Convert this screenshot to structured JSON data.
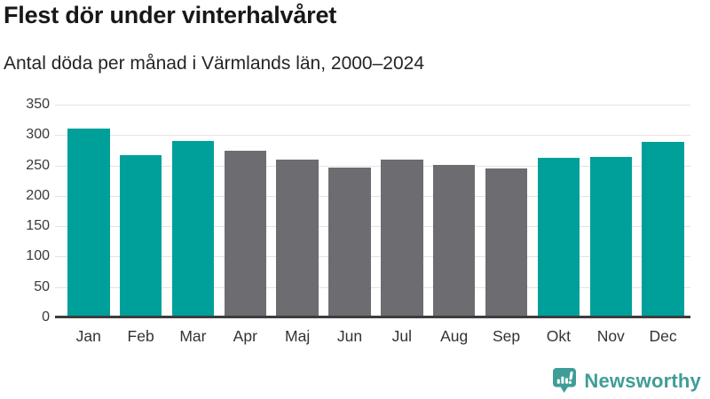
{
  "title": "Flest dör under vinterhalvåret",
  "subtitle": "Antal döda per månad i Värmlands län, 2000–2024",
  "chart_data": {
    "type": "bar",
    "title": "Flest dör under vinterhalvåret",
    "subtitle": "Antal döda per månad i Värmlands län, 2000–2024",
    "categories": [
      "Jan",
      "Feb",
      "Mar",
      "Apr",
      "Maj",
      "Jun",
      "Jul",
      "Aug",
      "Sep",
      "Okt",
      "Nov",
      "Dec"
    ],
    "values": [
      310,
      267,
      290,
      274,
      259,
      247,
      259,
      251,
      245,
      263,
      264,
      289
    ],
    "bar_groups": [
      "winter",
      "winter",
      "winter",
      "summer",
      "summer",
      "summer",
      "summer",
      "summer",
      "summer",
      "winter",
      "winter",
      "winter"
    ],
    "group_colors": {
      "winter": "#00a09a",
      "summer": "#6d6d71"
    },
    "xlabel": "",
    "ylabel": "",
    "ylim": [
      0,
      350
    ],
    "yticks": [
      0,
      50,
      100,
      150,
      200,
      250,
      300,
      350
    ],
    "grid": true,
    "legend": "none"
  },
  "colors": {
    "accent_teal": "#00a09a",
    "neutral_gray": "#6d6d71",
    "gridline": "#e3e3e3",
    "axis_line": "#3d3d3d",
    "logo_teal": "#3f9d97"
  },
  "logo": {
    "label": "Newsworthy",
    "icon": "newsworthy-speech-bubble-chart-icon"
  }
}
